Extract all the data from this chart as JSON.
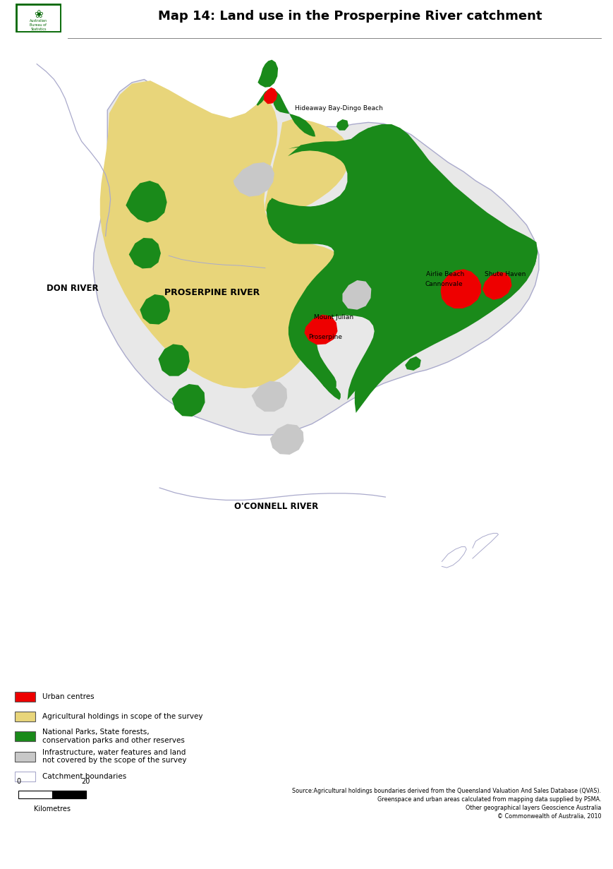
{
  "title": "Map 14: Land use in the Prosperpine River catchment",
  "title_fontsize": 13,
  "background_color": "#ffffff",
  "colors": {
    "urban": "#ee0000",
    "agricultural": "#e8d57a",
    "national_parks": "#1a8a1a",
    "infrastructure": "#c8c8c8",
    "catchment_boundary": "#aaaacc",
    "river_lines": "#aaaacc"
  },
  "legend_items": [
    {
      "color": "#ee0000",
      "label": "Urban centres",
      "edge": "#555555"
    },
    {
      "color": "#e8d57a",
      "label": "Agricultural holdings in scope of the survey",
      "edge": "#555555"
    },
    {
      "color": "#1a8a1a",
      "label": "National Parks, State forests,\nconservation parks and other reserves",
      "edge": "#555555"
    },
    {
      "color": "#c8c8c8",
      "label": "Infrastructure, water features and land\nnot covered by the scope of the survey",
      "edge": "#555555"
    },
    {
      "color": "#ffffff",
      "label": "Catchment boundaries",
      "edge": "#aaaacc"
    }
  ],
  "source_text": "Source:Agricultural holdings boundaries derived from the Queensland Valuation And Sales Database (QVAS).\nGreenspace and urban areas calculated from mapping data supplied by PSMA.\nOther geographical layers Geoscience Australia\n© Commonwealth of Australia, 2010"
}
